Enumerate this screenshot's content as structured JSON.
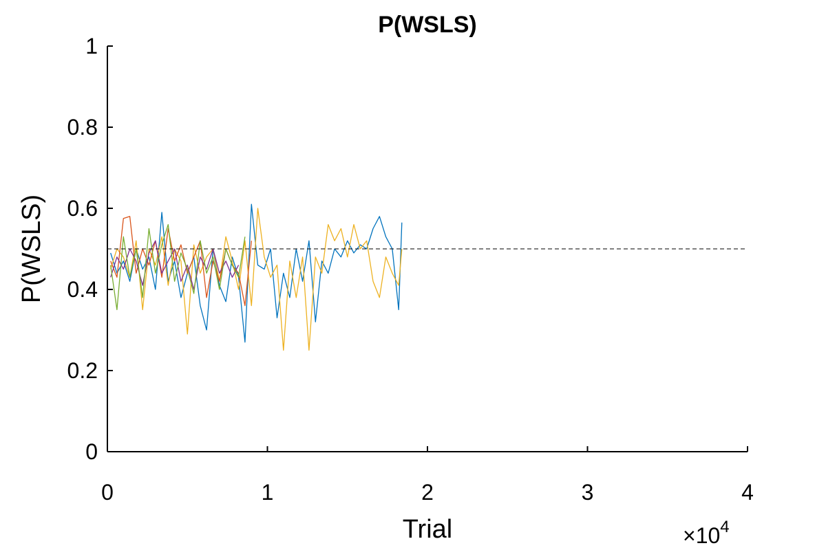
{
  "chart_data": {
    "type": "line",
    "title": "P(WSLS)",
    "xlabel": "Trial",
    "ylabel": "P(WSLS)",
    "x_exponent_label": "×10",
    "x_exponent_power": "4",
    "xlim": [
      0,
      4
    ],
    "ylim": [
      0,
      1
    ],
    "x_ticks": [
      0,
      1,
      2,
      3,
      4
    ],
    "x_tick_labels": [
      "0",
      "1",
      "2",
      "3",
      "4"
    ],
    "y_ticks": [
      0,
      0.2,
      0.4,
      0.6,
      0.8,
      1
    ],
    "y_tick_labels": [
      "0",
      "0.2",
      "0.4",
      "0.6",
      "0.8",
      "1"
    ],
    "reference_line": {
      "y": 0.5,
      "style": "dashed"
    },
    "grid": false,
    "legend": "none",
    "series": [
      {
        "color": "#0072BD",
        "x": [
          0.02,
          0.06,
          0.1,
          0.14,
          0.18,
          0.22,
          0.26,
          0.3,
          0.34,
          0.38,
          0.42,
          0.46,
          0.5,
          0.54,
          0.58,
          0.62,
          0.66,
          0.7,
          0.74,
          0.78,
          0.82,
          0.86,
          0.9,
          0.94,
          0.98,
          1.02,
          1.06,
          1.1,
          1.14,
          1.18,
          1.22,
          1.26,
          1.3,
          1.34,
          1.38,
          1.42,
          1.46,
          1.5,
          1.54,
          1.58,
          1.62,
          1.66,
          1.7,
          1.74,
          1.78,
          1.82,
          1.84
        ],
        "y": [
          0.49,
          0.44,
          0.47,
          0.42,
          0.5,
          0.45,
          0.48,
          0.4,
          0.59,
          0.42,
          0.47,
          0.38,
          0.44,
          0.48,
          0.36,
          0.3,
          0.5,
          0.41,
          0.37,
          0.48,
          0.43,
          0.27,
          0.61,
          0.46,
          0.45,
          0.5,
          0.33,
          0.44,
          0.38,
          0.5,
          0.42,
          0.52,
          0.32,
          0.47,
          0.44,
          0.5,
          0.48,
          0.52,
          0.49,
          0.51,
          0.5,
          0.55,
          0.58,
          0.53,
          0.5,
          0.35,
          0.565
        ]
      },
      {
        "color": "#EDB120",
        "x": [
          0.02,
          0.06,
          0.1,
          0.14,
          0.18,
          0.22,
          0.26,
          0.3,
          0.34,
          0.38,
          0.42,
          0.46,
          0.5,
          0.54,
          0.58,
          0.62,
          0.66,
          0.7,
          0.74,
          0.78,
          0.82,
          0.86,
          0.9,
          0.94,
          0.98,
          1.02,
          1.06,
          1.1,
          1.14,
          1.18,
          1.22,
          1.26,
          1.3,
          1.34,
          1.38,
          1.42,
          1.46,
          1.5,
          1.54,
          1.58,
          1.62,
          1.66,
          1.7,
          1.74,
          1.78,
          1.82,
          1.84
        ],
        "y": [
          0.45,
          0.5,
          0.48,
          0.43,
          0.52,
          0.35,
          0.5,
          0.46,
          0.53,
          0.41,
          0.5,
          0.47,
          0.29,
          0.51,
          0.44,
          0.48,
          0.5,
          0.42,
          0.53,
          0.47,
          0.4,
          0.52,
          0.36,
          0.6,
          0.48,
          0.43,
          0.46,
          0.25,
          0.47,
          0.38,
          0.48,
          0.25,
          0.48,
          0.44,
          0.56,
          0.52,
          0.55,
          0.48,
          0.56,
          0.5,
          0.52,
          0.42,
          0.38,
          0.48,
          0.44,
          0.41,
          0.5
        ]
      },
      {
        "color": "#D95319",
        "x": [
          0.02,
          0.06,
          0.1,
          0.14,
          0.18,
          0.22,
          0.26,
          0.3,
          0.34,
          0.38,
          0.42,
          0.46,
          0.5,
          0.54,
          0.58,
          0.62,
          0.66,
          0.7,
          0.74,
          0.78,
          0.82,
          0.86,
          0.9
        ],
        "y": [
          0.47,
          0.43,
          0.575,
          0.58,
          0.44,
          0.5,
          0.46,
          0.52,
          0.43,
          0.55,
          0.47,
          0.51,
          0.44,
          0.48,
          0.52,
          0.38,
          0.47,
          0.42,
          0.5,
          0.46,
          0.44,
          0.36,
          0.52
        ]
      },
      {
        "color": "#7E2F8E",
        "x": [
          0.02,
          0.06,
          0.1,
          0.14,
          0.18,
          0.22,
          0.26,
          0.3,
          0.34,
          0.38,
          0.42,
          0.46,
          0.5,
          0.54,
          0.58,
          0.62,
          0.66,
          0.7,
          0.74,
          0.78,
          0.82
        ],
        "y": [
          0.43,
          0.48,
          0.45,
          0.5,
          0.47,
          0.41,
          0.49,
          0.52,
          0.44,
          0.47,
          0.5,
          0.42,
          0.46,
          0.4,
          0.48,
          0.45,
          0.5,
          0.44,
          0.47,
          0.43,
          0.46
        ]
      },
      {
        "color": "#77AC30",
        "x": [
          0.02,
          0.06,
          0.1,
          0.14,
          0.18,
          0.22,
          0.26,
          0.3,
          0.34,
          0.38,
          0.42,
          0.46,
          0.5,
          0.54,
          0.58,
          0.62,
          0.66,
          0.7,
          0.74,
          0.78,
          0.82,
          0.86
        ],
        "y": [
          0.46,
          0.35,
          0.53,
          0.43,
          0.5,
          0.38,
          0.55,
          0.44,
          0.51,
          0.56,
          0.42,
          0.49,
          0.45,
          0.39,
          0.52,
          0.44,
          0.48,
          0.4,
          0.5,
          0.46,
          0.43,
          0.53
        ]
      }
    ]
  }
}
